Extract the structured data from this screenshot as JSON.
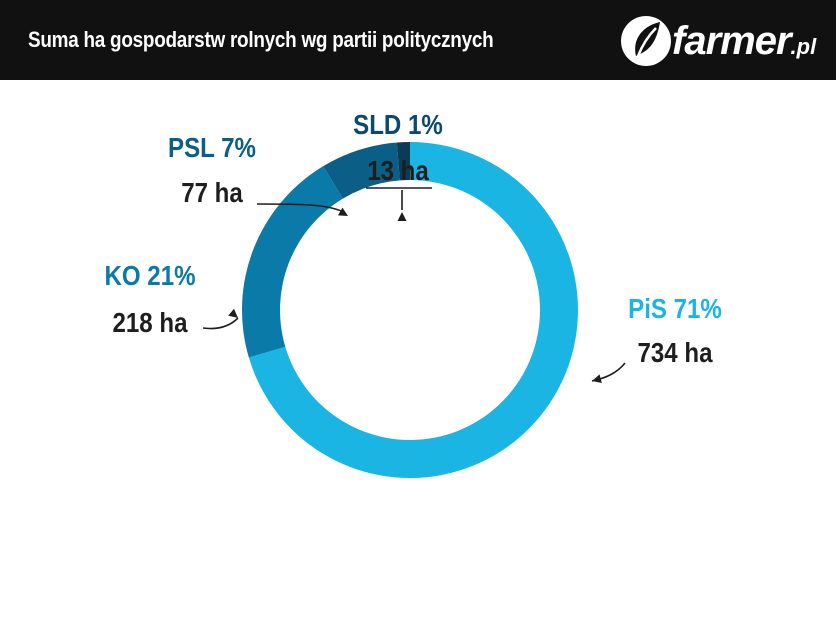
{
  "header": {
    "title": "Suma ha gospodarstw rolnych wg partii politycznych"
  },
  "logo": {
    "main": "farmer",
    "suffix": ".pl"
  },
  "colors": {
    "header_bg": "#111111",
    "PiS": "#1bb5e3",
    "KO": "#0a7aa8",
    "PSL": "#0b5e86",
    "SLD": "#0c3b57",
    "label_dark": "#1e1e1e"
  },
  "chart_data": {
    "type": "pie",
    "title": "Suma ha gospodarstw rolnych wg partii politycznych",
    "donut": true,
    "slices": [
      {
        "name": "PiS",
        "percent_label": "PiS 71%",
        "value": 734,
        "value_label": "734 ha",
        "color": "#1bb5e3"
      },
      {
        "name": "KO",
        "percent_label": "KO 21%",
        "value": 218,
        "value_label": "218 ha",
        "color": "#0a7aa8"
      },
      {
        "name": "PSL",
        "percent_label": "PSL 7%",
        "value": 77,
        "value_label": "77 ha",
        "color": "#0b5e86"
      },
      {
        "name": "SLD",
        "percent_label": "SLD 1%",
        "value": 13,
        "value_label": "13 ha",
        "color": "#0c3b57"
      }
    ]
  }
}
